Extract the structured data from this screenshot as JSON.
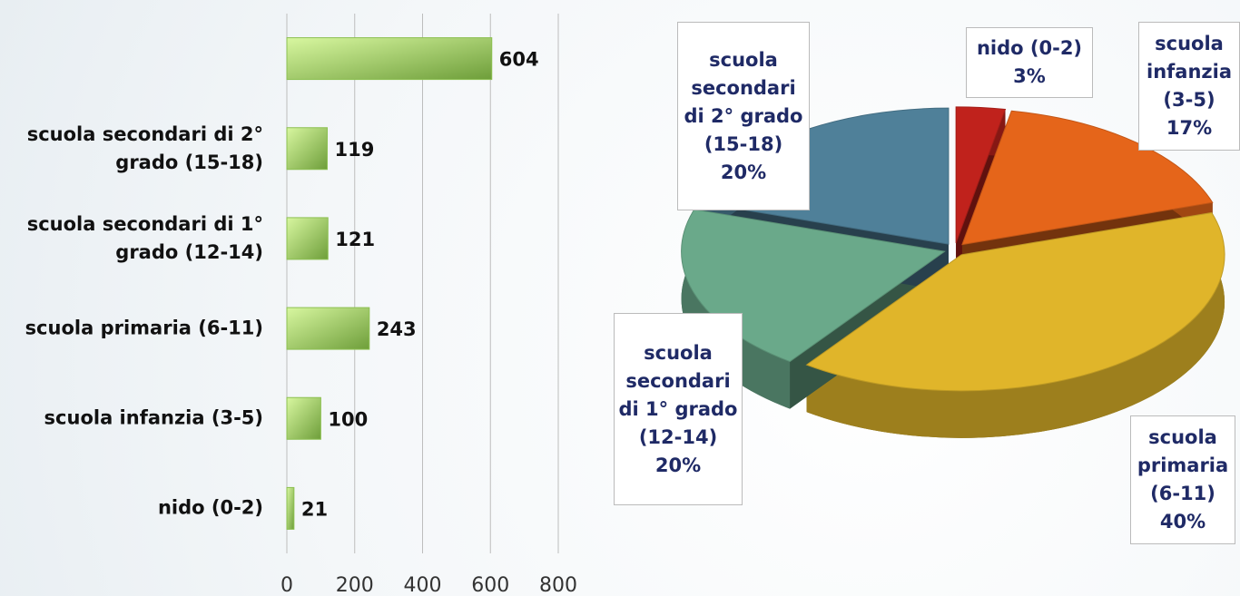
{
  "chart_data": [
    {
      "type": "bar",
      "orientation": "horizontal",
      "categories": [
        null,
        "scuola secondari di 2° grado (15-18)",
        "scuola secondari di 1° grado (12-14)",
        "scuola primaria (6-11)",
        "scuola infanzia (3-5)",
        "nido (0-2)"
      ],
      "values": [
        604,
        119,
        121,
        243,
        100,
        21
      ],
      "color": "#9fd65a",
      "xlim": [
        0,
        800
      ],
      "xticks": [
        0,
        200,
        400,
        600,
        800
      ],
      "grid": true
    },
    {
      "type": "pie",
      "three_d": true,
      "categories": [
        "nido (0-2)",
        "scuola infanzia (3-5)",
        "scuola primaria (6-11)",
        "scuola secondari di 1° grado (12-14)",
        "scuola secondari di 2° grado (15-18)"
      ],
      "values": [
        3,
        17,
        40,
        20,
        20
      ],
      "value_labels": [
        "3%",
        "17%",
        "40%",
        "20%",
        "20%"
      ],
      "colors": [
        "#c0221c",
        "#e5651a",
        "#e0b52a",
        "#6aa98a",
        "#4f8099"
      ]
    }
  ]
}
